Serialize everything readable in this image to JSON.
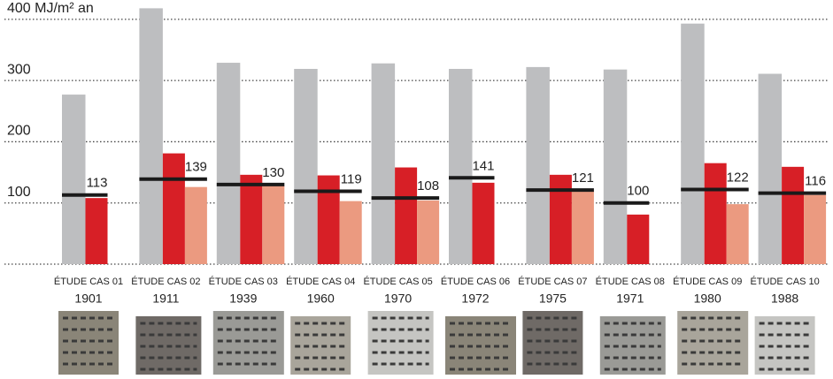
{
  "chart_data": {
    "type": "bar",
    "categories": [
      "ÉTUDE CAS 01",
      "ÉTUDE CAS 02",
      "ÉTUDE CAS 03",
      "ÉTUDE CAS 04",
      "ÉTUDE CAS 05",
      "ÉTUDE CAS 06",
      "ÉTUDE CAS 07",
      "ÉTUDE CAS 08",
      "ÉTUDE CAS 09",
      "ÉTUDE CAS 10"
    ],
    "years": [
      "1901",
      "1911",
      "1939",
      "1960",
      "1970",
      "1972",
      "1975",
      "1971",
      "1980",
      "1988"
    ],
    "series": [
      {
        "color": "#bdbec0",
        "values": [
          277,
          418,
          329,
          319,
          328,
          319,
          322,
          318,
          393,
          311
        ]
      },
      {
        "color": "#d71f26",
        "values": [
          108,
          181,
          146,
          145,
          158,
          133,
          146,
          81,
          165,
          159
        ]
      },
      {
        "color": "#eb9a80",
        "values": [
          null,
          126,
          128,
          103,
          104,
          null,
          120,
          null,
          98,
          113
        ]
      }
    ],
    "reference": {
      "color": "#1a1a1a",
      "values": [
        113,
        139,
        130,
        119,
        108,
        141,
        121,
        100,
        122,
        116
      ]
    },
    "ylim": [
      0,
      420
    ],
    "yticks": [
      100,
      200,
      300,
      {
        "value": 400,
        "label": "400 MJ/m² an"
      }
    ],
    "grid": true
  }
}
